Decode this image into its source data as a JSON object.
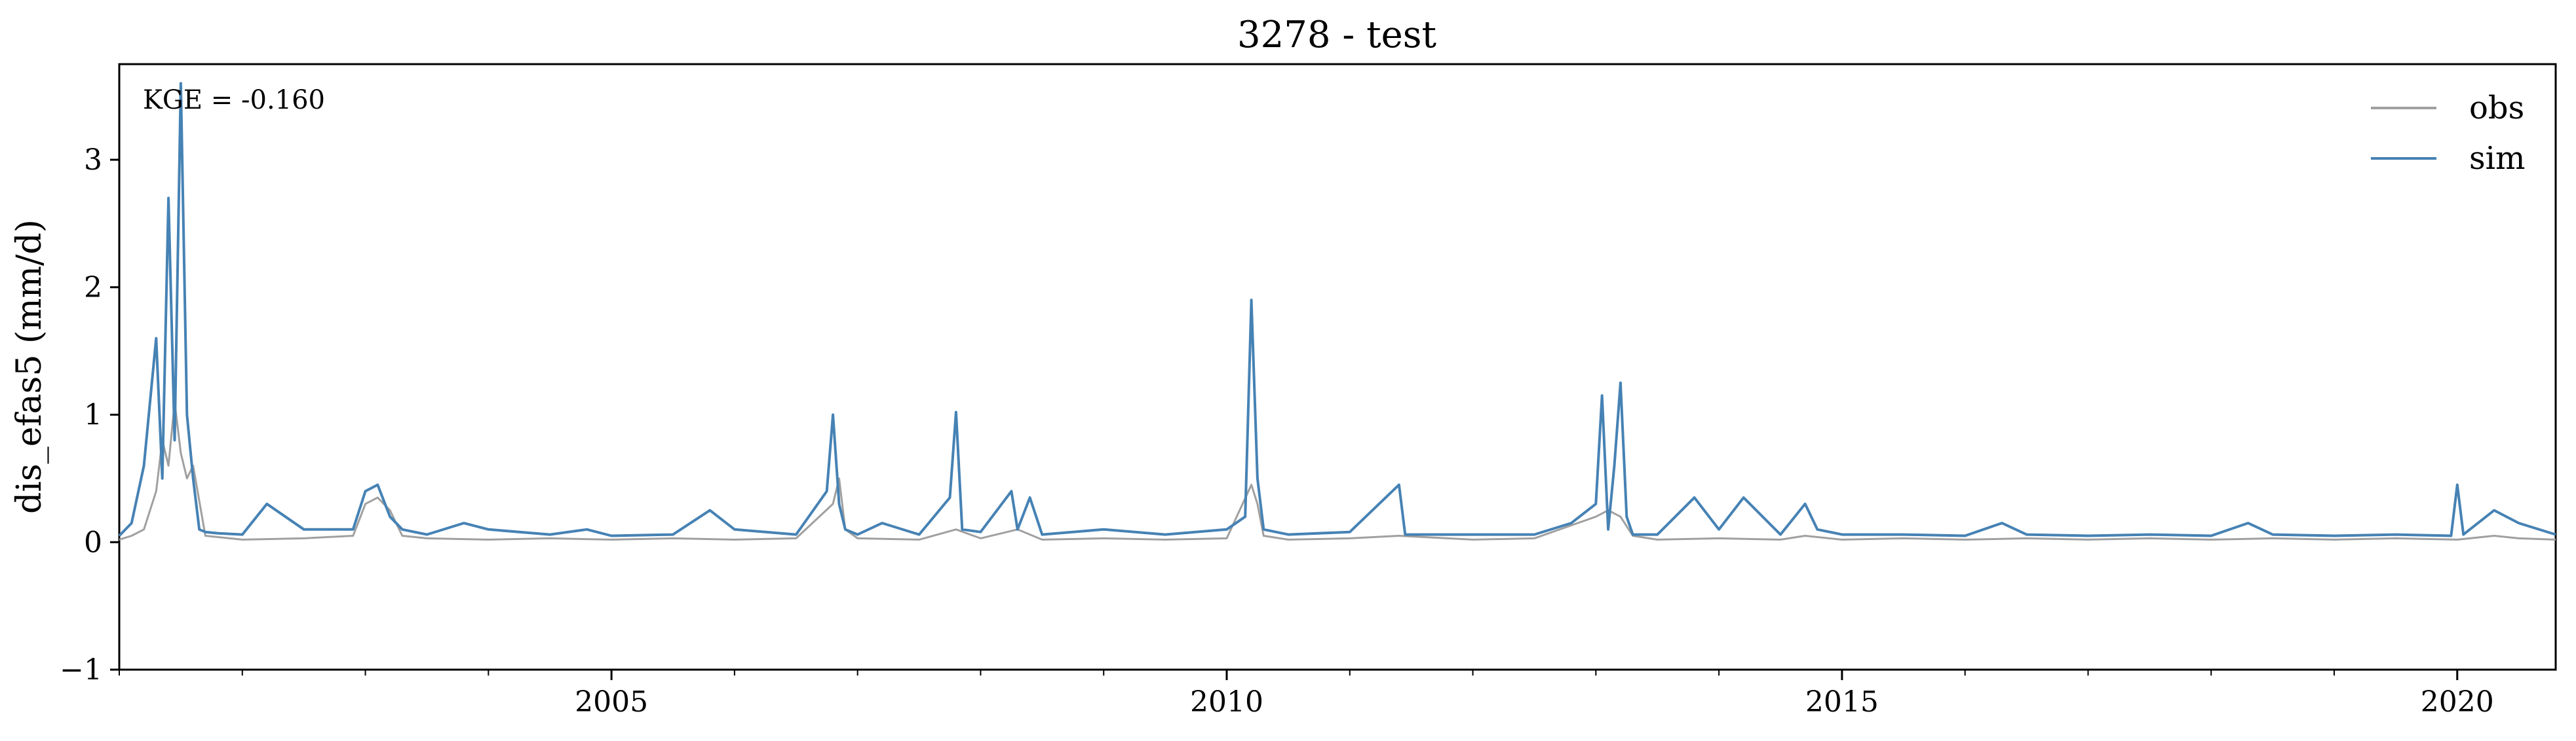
{
  "chart_data": {
    "type": "line",
    "title": "3278 - test",
    "xlabel": "",
    "ylabel": "dis_efas5 (mm/d)",
    "annotation": "KGE = -0.160",
    "xlim": [
      2001.0,
      2020.8
    ],
    "ylim": [
      -1,
      3.75
    ],
    "x_ticks": [
      {
        "value": 2005,
        "label": "2005"
      },
      {
        "value": 2010,
        "label": "2010"
      },
      {
        "value": 2015,
        "label": "2015"
      },
      {
        "value": 2020,
        "label": "2020"
      }
    ],
    "y_ticks": [
      {
        "value": -1,
        "label": "−1"
      },
      {
        "value": 0,
        "label": "0"
      },
      {
        "value": 1,
        "label": "1"
      },
      {
        "value": 2,
        "label": "2"
      },
      {
        "value": 3,
        "label": "3"
      }
    ],
    "legend_position": "top-right",
    "colors": {
      "obs": "#a0a0a0",
      "sim": "#4682b4"
    },
    "series": [
      {
        "name": "obs",
        "x": [
          2001.0,
          2001.1,
          2001.2,
          2001.3,
          2001.35,
          2001.4,
          2001.45,
          2001.5,
          2001.55,
          2001.6,
          2001.7,
          2002.0,
          2002.5,
          2002.9,
          2003.0,
          2003.1,
          2003.2,
          2003.3,
          2003.5,
          2004.0,
          2004.5,
          2005.0,
          2005.5,
          2006.0,
          2006.5,
          2006.8,
          2006.85,
          2006.9,
          2007.0,
          2007.5,
          2007.8,
          2008.0,
          2008.3,
          2008.5,
          2009.0,
          2009.5,
          2010.0,
          2010.2,
          2010.25,
          2010.3,
          2010.5,
          2011.0,
          2011.4,
          2012.0,
          2012.5,
          2013.0,
          2013.1,
          2013.2,
          2013.3,
          2013.5,
          2014.0,
          2014.5,
          2014.7,
          2015.0,
          2015.5,
          2016.0,
          2016.5,
          2017.0,
          2017.5,
          2018.0,
          2018.5,
          2019.0,
          2019.5,
          2020.0,
          2020.3,
          2020.5,
          2020.8
        ],
        "y": [
          0.02,
          0.05,
          0.1,
          0.4,
          0.8,
          0.6,
          1.1,
          0.7,
          0.5,
          0.6,
          0.05,
          0.02,
          0.03,
          0.05,
          0.3,
          0.35,
          0.25,
          0.05,
          0.03,
          0.02,
          0.03,
          0.02,
          0.03,
          0.02,
          0.03,
          0.3,
          0.5,
          0.1,
          0.03,
          0.02,
          0.1,
          0.03,
          0.1,
          0.02,
          0.03,
          0.02,
          0.03,
          0.45,
          0.3,
          0.05,
          0.02,
          0.03,
          0.05,
          0.02,
          0.03,
          0.2,
          0.25,
          0.2,
          0.05,
          0.02,
          0.03,
          0.02,
          0.05,
          0.02,
          0.03,
          0.02,
          0.03,
          0.02,
          0.03,
          0.02,
          0.03,
          0.02,
          0.03,
          0.02,
          0.05,
          0.03,
          0.02
        ]
      },
      {
        "name": "sim",
        "x": [
          2001.0,
          2001.1,
          2001.2,
          2001.3,
          2001.35,
          2001.4,
          2001.45,
          2001.5,
          2001.55,
          2001.6,
          2001.65,
          2001.7,
          2001.8,
          2002.0,
          2002.2,
          2002.5,
          2002.9,
          2003.0,
          2003.1,
          2003.2,
          2003.3,
          2003.5,
          2003.8,
          2004.0,
          2004.5,
          2004.8,
          2005.0,
          2005.5,
          2005.8,
          2006.0,
          2006.5,
          2006.75,
          2006.8,
          2006.85,
          2006.9,
          2007.0,
          2007.2,
          2007.5,
          2007.75,
          2007.8,
          2007.85,
          2008.0,
          2008.25,
          2008.3,
          2008.4,
          2008.5,
          2009.0,
          2009.5,
          2010.0,
          2010.15,
          2010.2,
          2010.25,
          2010.3,
          2010.5,
          2011.0,
          2011.4,
          2011.45,
          2012.0,
          2012.5,
          2012.8,
          2013.0,
          2013.05,
          2013.1,
          2013.15,
          2013.2,
          2013.25,
          2013.3,
          2013.5,
          2013.8,
          2014.0,
          2014.2,
          2014.5,
          2014.7,
          2014.8,
          2015.0,
          2015.5,
          2016.0,
          2016.3,
          2016.5,
          2017.0,
          2017.5,
          2018.0,
          2018.3,
          2018.5,
          2019.0,
          2019.5,
          2019.95,
          2020.0,
          2020.05,
          2020.3,
          2020.5,
          2020.8
        ],
        "y": [
          0.05,
          0.15,
          0.6,
          1.6,
          0.5,
          2.7,
          0.8,
          3.6,
          1.0,
          0.5,
          0.1,
          0.08,
          0.07,
          0.06,
          0.3,
          0.1,
          0.1,
          0.4,
          0.45,
          0.2,
          0.1,
          0.06,
          0.15,
          0.1,
          0.06,
          0.1,
          0.05,
          0.06,
          0.25,
          0.1,
          0.06,
          0.4,
          1.0,
          0.3,
          0.1,
          0.06,
          0.15,
          0.06,
          0.35,
          1.02,
          0.1,
          0.08,
          0.4,
          0.1,
          0.35,
          0.06,
          0.1,
          0.06,
          0.1,
          0.2,
          1.9,
          0.5,
          0.1,
          0.06,
          0.08,
          0.45,
          0.06,
          0.06,
          0.06,
          0.15,
          0.3,
          1.15,
          0.1,
          0.6,
          1.25,
          0.2,
          0.06,
          0.06,
          0.35,
          0.1,
          0.35,
          0.06,
          0.3,
          0.1,
          0.06,
          0.06,
          0.05,
          0.15,
          0.06,
          0.05,
          0.06,
          0.05,
          0.15,
          0.06,
          0.05,
          0.06,
          0.05,
          0.45,
          0.06,
          0.25,
          0.15,
          0.06
        ]
      }
    ]
  }
}
